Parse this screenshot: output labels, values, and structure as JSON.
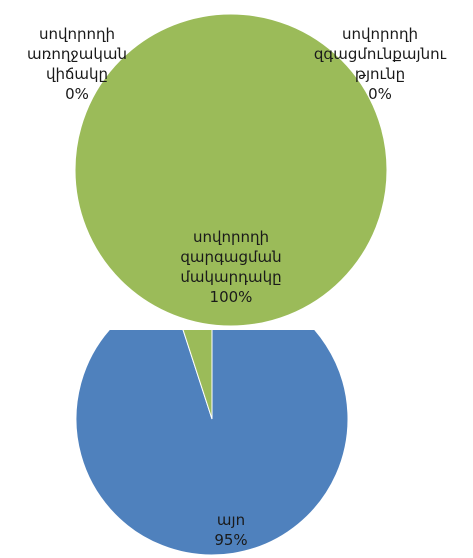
{
  "chart_data": [
    {
      "type": "pie",
      "categories": [
        "սովորողի առողջական վիճակը",
        "սովորողի զգացմունքայնություն",
        "սովորողի զարգացման մակարդակը"
      ],
      "values": [
        0,
        0,
        100
      ],
      "data_labels": [
        {
          "name": "սովորողի\nառողջական\nվիճակը",
          "value": "0%"
        },
        {
          "name": "սովորողի\nզգացմունքայնու\nթյունը",
          "value": "0%"
        },
        {
          "name": "սովորողի\nզարգացման\nմակարդակը",
          "value": "100%"
        }
      ],
      "colors": [
        "#4f81bd",
        "#c0504d",
        "#9bbb59"
      ],
      "legend": "none"
    },
    {
      "type": "pie",
      "categories": [
        "այո",
        ""
      ],
      "values": [
        95,
        5
      ],
      "data_labels": [
        {
          "name": "այո",
          "value": "95%"
        }
      ],
      "colors": [
        "#4f81bd",
        "#9bbb59"
      ],
      "legend": "none"
    }
  ]
}
